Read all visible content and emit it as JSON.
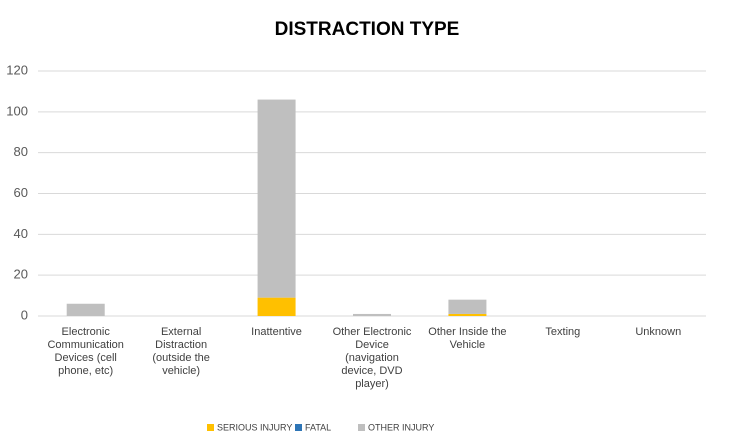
{
  "chart_data": {
    "type": "stacked_bar",
    "title": "DISTRACTION TYPE",
    "categories": [
      "Electronic Communication Devices (cell phone, etc)",
      "External Distraction (outside the vehicle)",
      "Inattentive",
      "Other Electronic Device (navigation device, DVD player)",
      "Other Inside the Vehicle",
      "Texting",
      "Unknown"
    ],
    "series": [
      {
        "name": "SERIOUS INJURY",
        "color": "#ffc000",
        "values": [
          0,
          0,
          9,
          0,
          1,
          0,
          0
        ]
      },
      {
        "name": "FATAL",
        "color": "#2e75b6",
        "values": [
          0,
          0,
          0,
          0,
          0,
          0,
          0
        ]
      },
      {
        "name": "OTHER INJURY",
        "color": "#bfbfbf",
        "values": [
          6,
          0,
          97,
          1,
          7,
          0,
          0
        ]
      }
    ],
    "ylim": [
      0,
      120
    ],
    "yticks": [
      0,
      20,
      40,
      60,
      80,
      100,
      120
    ],
    "grid": true,
    "legend": "bottom"
  }
}
